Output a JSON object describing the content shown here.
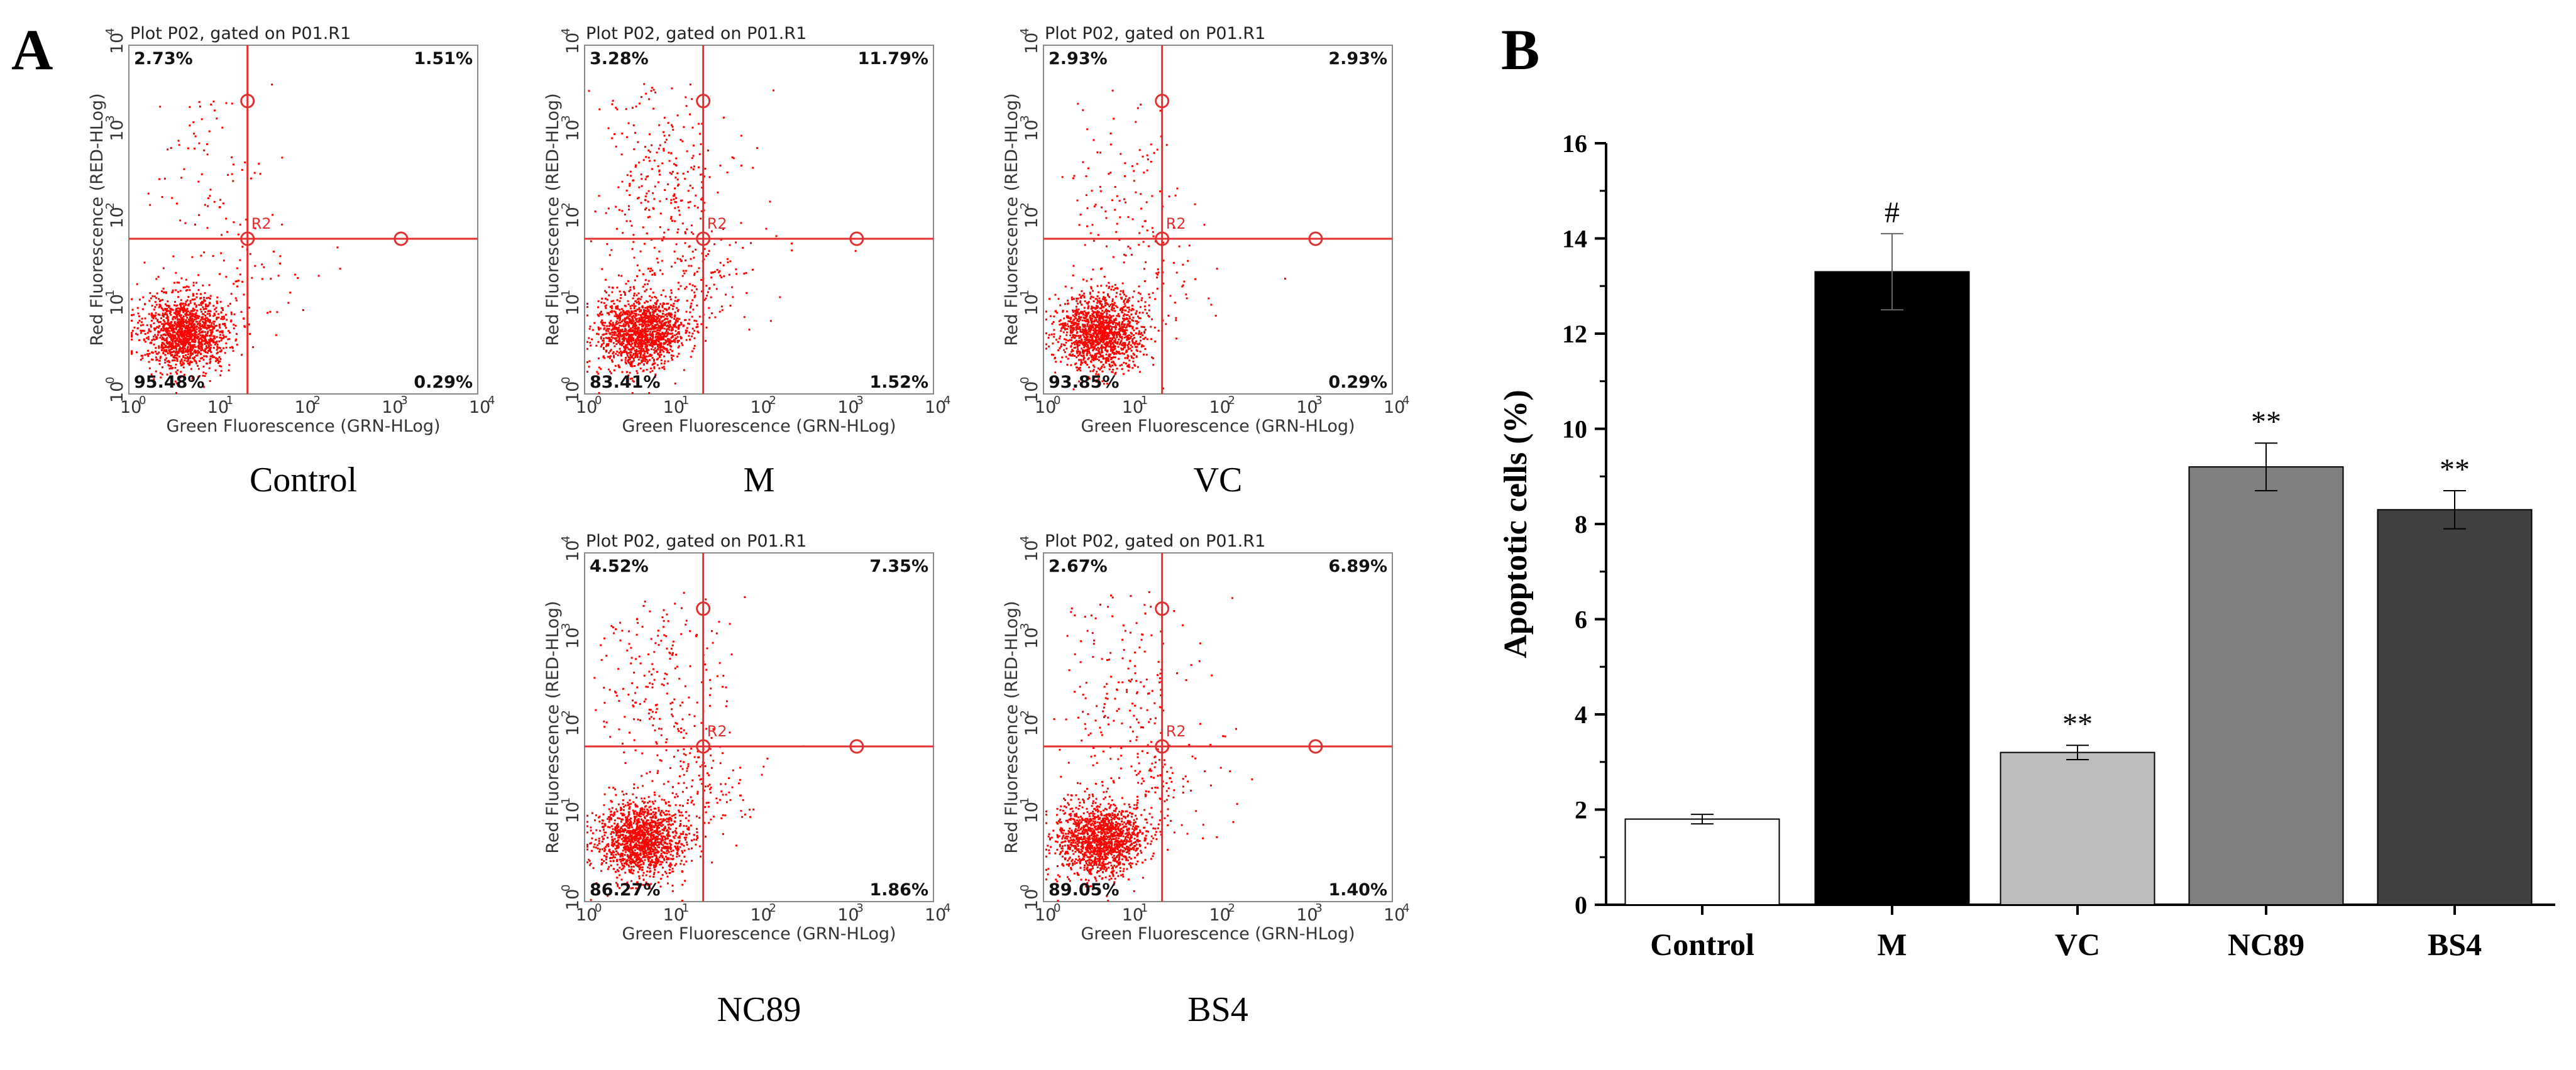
{
  "panel_a": {
    "letter": "A",
    "plot_title": "Plot P02, gated on P01.R1",
    "x_axis_label": "Green Fluorescence (GRN-HLog)",
    "y_axis_label": "Red Fluorescence (RED-HLog)",
    "tick_base": "10",
    "tick_exponents": [
      "0",
      "1",
      "2",
      "3",
      "4"
    ],
    "region_label": "R2",
    "gate_color": "#e03030",
    "dot_color": "#ff0000",
    "plots": [
      {
        "sample": "Control",
        "q_upper_left": "2.73%",
        "q_upper_right": "1.51%",
        "q_lower_left": "95.48%",
        "q_lower_right": "0.29%"
      },
      {
        "sample": "M",
        "q_upper_left": "3.28%",
        "q_upper_right": "11.79%",
        "q_lower_left": "83.41%",
        "q_lower_right": "1.52%"
      },
      {
        "sample": "VC",
        "q_upper_left": "2.93%",
        "q_upper_right": "2.93%",
        "q_lower_left": "93.85%",
        "q_lower_right": "0.29%"
      },
      {
        "sample": "NC89",
        "q_upper_left": "4.52%",
        "q_upper_right": "7.35%",
        "q_lower_left": "86.27%",
        "q_lower_right": "1.86%"
      },
      {
        "sample": "BS4",
        "q_upper_left": "2.67%",
        "q_upper_right": "6.89%",
        "q_lower_left": "89.05%",
        "q_lower_right": "1.40%"
      }
    ]
  },
  "panel_b": {
    "letter": "B"
  },
  "chart_data": {
    "type": "bar",
    "title": "",
    "xlabel": "",
    "ylabel": "Apoptotic cells (%)",
    "ylim": [
      0,
      16
    ],
    "yticks": [
      "0",
      "2",
      "4",
      "6",
      "8",
      "10",
      "12",
      "14",
      "16"
    ],
    "categories": [
      "Control",
      "M",
      "VC",
      "NC89",
      "BS4"
    ],
    "values": [
      1.8,
      13.3,
      3.2,
      9.2,
      8.3
    ],
    "errors": [
      0.1,
      0.8,
      0.15,
      0.5,
      0.4
    ],
    "annotations": [
      "",
      "#",
      "**",
      "**",
      "**"
    ],
    "bar_colors": [
      "#ffffff",
      "#000000",
      "#bdbdbd",
      "#7f7f7f",
      "#404040"
    ]
  }
}
